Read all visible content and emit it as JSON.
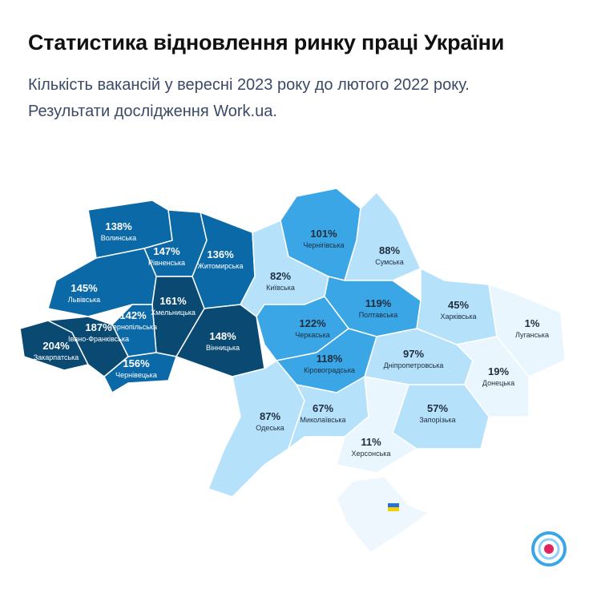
{
  "header": {
    "title": "Статистика відновлення ринку праці України",
    "subtitle_lines": [
      "Кількість вакансій у вересні 2023 року до лютого 2022 року.",
      "Результати дослідження Work.ua."
    ]
  },
  "regions": [
    {
      "name": "Волинська",
      "value": "138%",
      "color": "#0b69a8"
    },
    {
      "name": "Рівненська",
      "value": "147%",
      "color": "#0b69a8"
    },
    {
      "name": "Житомирська",
      "value": "136%",
      "color": "#0b69a8"
    },
    {
      "name": "Львівська",
      "value": "145%",
      "color": "#0b69a8"
    },
    {
      "name": "Хмельницька",
      "value": "161%",
      "color": "#0a4a72"
    },
    {
      "name": "Тернопільська",
      "value": "142%",
      "color": "#0b69a8"
    },
    {
      "name": "Вінницька",
      "value": "148%",
      "color": "#0a4a72"
    },
    {
      "name": "Закарпатська",
      "value": "204%",
      "color": "#0a4a72"
    },
    {
      "name": "Івано-Франківська",
      "value": "187%",
      "color": "#0a4a72"
    },
    {
      "name": "Чернівецька",
      "value": "156%",
      "color": "#0b69a8"
    },
    {
      "name": "Київська",
      "value": "82%",
      "color": "#b5e1fb"
    },
    {
      "name": "Чернігівська",
      "value": "101%",
      "color": "#3aa6e6"
    },
    {
      "name": "Сумська",
      "value": "88%",
      "color": "#b5e1fb"
    },
    {
      "name": "Полтавська",
      "value": "119%",
      "color": "#3aa6e6"
    },
    {
      "name": "Черкаська",
      "value": "122%",
      "color": "#3aa6e6"
    },
    {
      "name": "Кіровоградська",
      "value": "118%",
      "color": "#3aa6e6"
    },
    {
      "name": "Харківська",
      "value": "45%",
      "color": "#b5e1fb"
    },
    {
      "name": "Луганська",
      "value": "1%",
      "color": "#eaf6fd"
    },
    {
      "name": "Дніпропетровська",
      "value": "97%",
      "color": "#b5e1fb"
    },
    {
      "name": "Донецька",
      "value": "19%",
      "color": "#eaf6fd"
    },
    {
      "name": "Одеська",
      "value": "87%",
      "color": "#b5e1fb"
    },
    {
      "name": "Миколаївська",
      "value": "67%",
      "color": "#b5e1fb"
    },
    {
      "name": "Запорізька",
      "value": "57%",
      "color": "#b5e1fb"
    },
    {
      "name": "Херсонська",
      "value": "11%",
      "color": "#eaf6fd"
    }
  ]
}
